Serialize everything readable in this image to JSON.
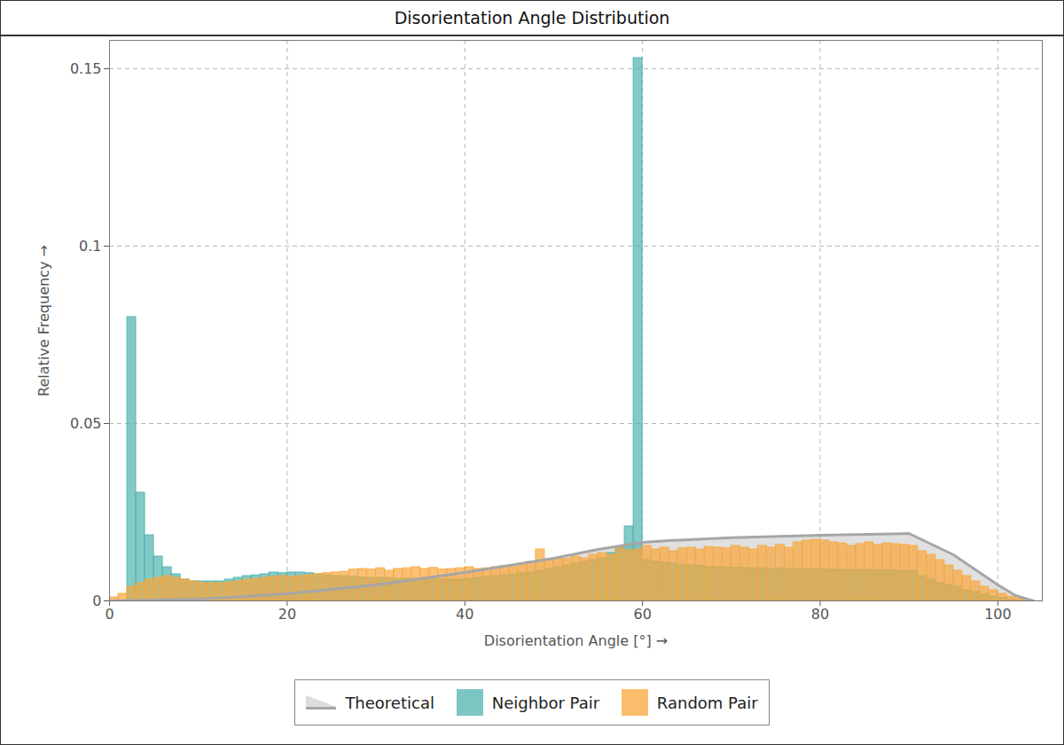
{
  "chart_data": {
    "type": "histogram",
    "title": "Disorientation Angle Distribution",
    "x_label": "Disorientation Angle [°]",
    "y_label": "Relative Frequency",
    "xlim": [
      0,
      105
    ],
    "ylim": [
      0,
      0.158
    ],
    "xticks": [
      0,
      20,
      40,
      60,
      80,
      100
    ],
    "yticks": [
      0,
      0.05,
      0.1,
      0.15
    ],
    "grid": true,
    "legend": "bottom",
    "bins": [
      0,
      1,
      2,
      3,
      4,
      5,
      6,
      7,
      8,
      9,
      10,
      11,
      12,
      13,
      14,
      15,
      16,
      17,
      18,
      19,
      20,
      21,
      22,
      23,
      24,
      25,
      26,
      27,
      28,
      29,
      30,
      31,
      32,
      33,
      34,
      35,
      36,
      37,
      38,
      39,
      40,
      41,
      42,
      43,
      44,
      45,
      46,
      47,
      48,
      49,
      50,
      51,
      52,
      53,
      54,
      55,
      56,
      57,
      58,
      59,
      60,
      61,
      62,
      63,
      64,
      65,
      66,
      67,
      68,
      69,
      70,
      71,
      72,
      73,
      74,
      75,
      76,
      77,
      78,
      79,
      80,
      81,
      82,
      83,
      84,
      85,
      86,
      87,
      88,
      89,
      90,
      91,
      92,
      93,
      94,
      95,
      96,
      97,
      98,
      99,
      100,
      101,
      102,
      103,
      104
    ],
    "series": [
      {
        "name": "Theoretical",
        "type": "area",
        "color": "#a6a6a6",
        "x": [
          0,
          10,
          20,
          30,
          40,
          45,
          50,
          55,
          60,
          63,
          70,
          80,
          90,
          95,
          100,
          102,
          104
        ],
        "values": [
          0,
          0.0005,
          0.002,
          0.0045,
          0.008,
          0.01,
          0.012,
          0.0145,
          0.0165,
          0.017,
          0.0178,
          0.0185,
          0.019,
          0.013,
          0.0045,
          0.0015,
          0
        ]
      },
      {
        "name": "Neighbor Pair",
        "type": "bar",
        "color": "#4fb3ae",
        "values": [
          0,
          0,
          0.08,
          0.0305,
          0.0185,
          0.0125,
          0.0095,
          0.0075,
          0.006,
          0.0055,
          0.0055,
          0.0055,
          0.0055,
          0.006,
          0.0065,
          0.007,
          0.0072,
          0.0075,
          0.008,
          0.0078,
          0.008,
          0.008,
          0.0078,
          0.0075,
          0.0072,
          0.007,
          0.007,
          0.0068,
          0.0066,
          0.0065,
          0.0065,
          0.0064,
          0.0062,
          0.0063,
          0.0062,
          0.006,
          0.0062,
          0.006,
          0.006,
          0.006,
          0.0062,
          0.0065,
          0.0068,
          0.007,
          0.0072,
          0.0075,
          0.0078,
          0.008,
          0.0085,
          0.009,
          0.0095,
          0.01,
          0.0105,
          0.011,
          0.0115,
          0.012,
          0.0135,
          0.015,
          0.021,
          0.153,
          0.0115,
          0.011,
          0.0108,
          0.0105,
          0.0102,
          0.01,
          0.0098,
          0.0096,
          0.0095,
          0.0094,
          0.0093,
          0.0093,
          0.0092,
          0.0092,
          0.0091,
          0.0091,
          0.009,
          0.009,
          0.0089,
          0.0089,
          0.0088,
          0.0088,
          0.0088,
          0.0087,
          0.0087,
          0.0087,
          0.0086,
          0.0086,
          0.0086,
          0.0085,
          0.0085,
          0.007,
          0.006,
          0.005,
          0.0045,
          0.004,
          0.003,
          0.0025,
          0.0018,
          0.0012,
          0.0008,
          0.0004,
          0.0002,
          0.0001
        ]
      },
      {
        "name": "Random Pair",
        "type": "bar",
        "color": "#f8a73c",
        "values": [
          0.001,
          0.002,
          0.004,
          0.005,
          0.006,
          0.0065,
          0.007,
          0.0065,
          0.006,
          0.0055,
          0.005,
          0.005,
          0.005,
          0.0052,
          0.0055,
          0.006,
          0.0062,
          0.0065,
          0.0068,
          0.007,
          0.0068,
          0.007,
          0.0072,
          0.0075,
          0.0078,
          0.008,
          0.0082,
          0.0088,
          0.009,
          0.0088,
          0.0092,
          0.0085,
          0.009,
          0.0092,
          0.0095,
          0.009,
          0.0093,
          0.0088,
          0.009,
          0.0092,
          0.0095,
          0.009,
          0.0092,
          0.0095,
          0.0098,
          0.0095,
          0.0105,
          0.011,
          0.0145,
          0.0115,
          0.012,
          0.0118,
          0.0125,
          0.012,
          0.013,
          0.0135,
          0.013,
          0.0148,
          0.0142,
          0.0145,
          0.0155,
          0.0145,
          0.015,
          0.014,
          0.0148,
          0.015,
          0.0145,
          0.0152,
          0.015,
          0.0148,
          0.0155,
          0.015,
          0.0145,
          0.0155,
          0.015,
          0.0158,
          0.015,
          0.0165,
          0.017,
          0.0172,
          0.017,
          0.0165,
          0.0162,
          0.0155,
          0.016,
          0.0165,
          0.0158,
          0.0162,
          0.016,
          0.0158,
          0.0155,
          0.014,
          0.013,
          0.0115,
          0.01,
          0.0085,
          0.007,
          0.0055,
          0.004,
          0.003,
          0.002,
          0.0012,
          0.0006,
          0.0002
        ]
      }
    ]
  }
}
